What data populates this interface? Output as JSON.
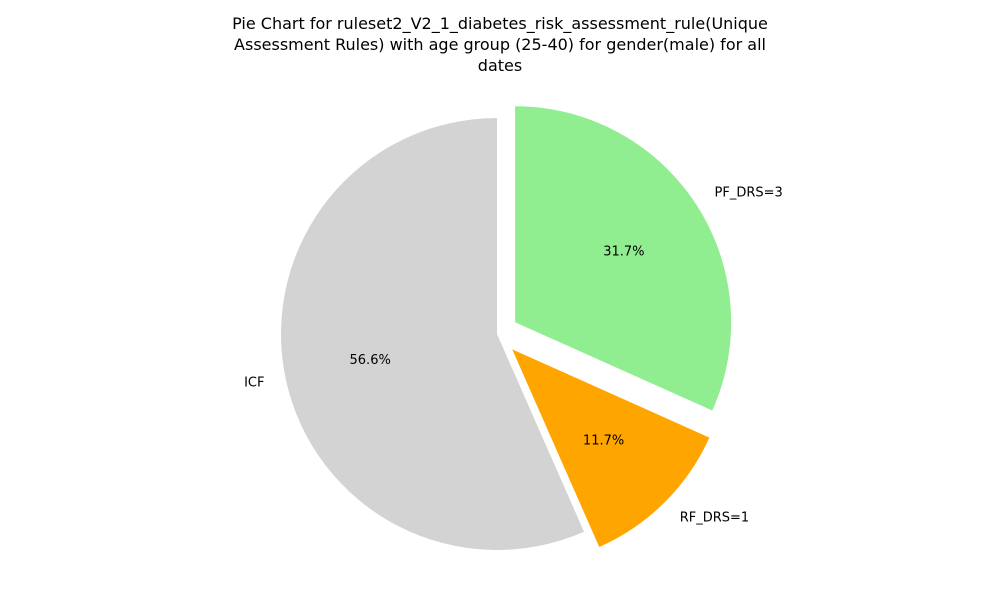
{
  "chart_data": {
    "type": "pie",
    "title_lines": [
      "Pie Chart for ruleset2_V2_1_diabetes_risk_assessment_rule(Unique",
      "Assessment Rules) with age group (25-40) for gender(male) for all",
      "dates"
    ],
    "slices": [
      {
        "label": "ICF",
        "value": 56.6,
        "pct_label": "56.6%",
        "color": "#d3d3d3",
        "exploded": false
      },
      {
        "label": "RF_DRS=1",
        "value": 11.7,
        "pct_label": "11.7%",
        "color": "#ffa500",
        "exploded": true
      },
      {
        "label": "PF_DRS=3",
        "value": 31.7,
        "pct_label": "31.7%",
        "color": "#90ee90",
        "exploded": true
      }
    ]
  }
}
